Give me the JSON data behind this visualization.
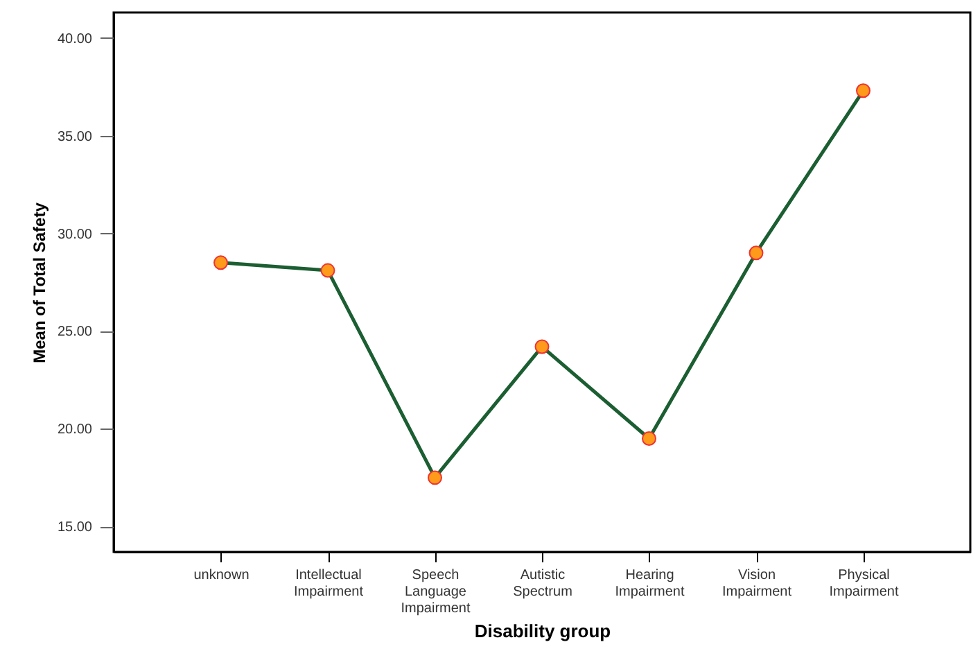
{
  "chart_data": {
    "type": "line",
    "xlabel": "Disability group",
    "ylabel": "Mean of Total Safety",
    "categories": [
      "unknown",
      "Intellectual Impairment",
      "Speech Language Impairment",
      "Autistic Spectrum",
      "Hearing Impairment",
      "Vision Impairment",
      "Physical Impairment"
    ],
    "series": [
      {
        "color": "#1b5e32",
        "values": [
          28.5,
          28.1,
          17.5,
          24.2,
          19.5,
          29.0,
          37.3
        ]
      }
    ],
    "ylim": [
      13.7,
      41.3
    ],
    "yticks": [
      {
        "value": 15,
        "label": "15.00"
      },
      {
        "value": 20,
        "label": "20.00"
      },
      {
        "value": 25,
        "label": "25.00"
      },
      {
        "value": 30,
        "label": "30.00"
      },
      {
        "value": 35,
        "label": "35.00"
      },
      {
        "value": 40,
        "label": "40.00"
      }
    ],
    "grid": false,
    "marker": "circle",
    "line_style": "solid"
  }
}
